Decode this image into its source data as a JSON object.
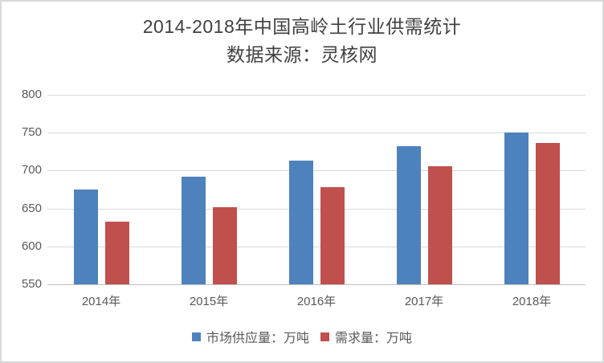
{
  "chart_data": {
    "type": "bar",
    "title": "2014-2018年中国高岭土行业供需统计",
    "subtitle": "数据来源：灵核网",
    "categories": [
      "2014年",
      "2015年",
      "2016年",
      "2017年",
      "2018年"
    ],
    "series": [
      {
        "id": "supply",
        "name": "市场供应量：万吨",
        "color": "#4d82bc",
        "values": [
          675,
          692,
          713,
          732,
          750
        ]
      },
      {
        "id": "demand",
        "name": "需求量：万吨",
        "color": "#c0504d",
        "values": [
          633,
          652,
          678,
          706,
          736
        ]
      }
    ],
    "xlabel": "",
    "ylabel": "",
    "ylim": [
      550,
      800
    ],
    "yticks": [
      550,
      600,
      650,
      700,
      750,
      800
    ],
    "grid": true,
    "legend_position": "bottom"
  },
  "colors": {
    "title_text": "#404040",
    "axis_text": "#595959",
    "gridline": "#d9d9d9",
    "axis_line": "#bfbfbf",
    "frame_border": "#d9d9d9",
    "background": "#ffffff"
  }
}
